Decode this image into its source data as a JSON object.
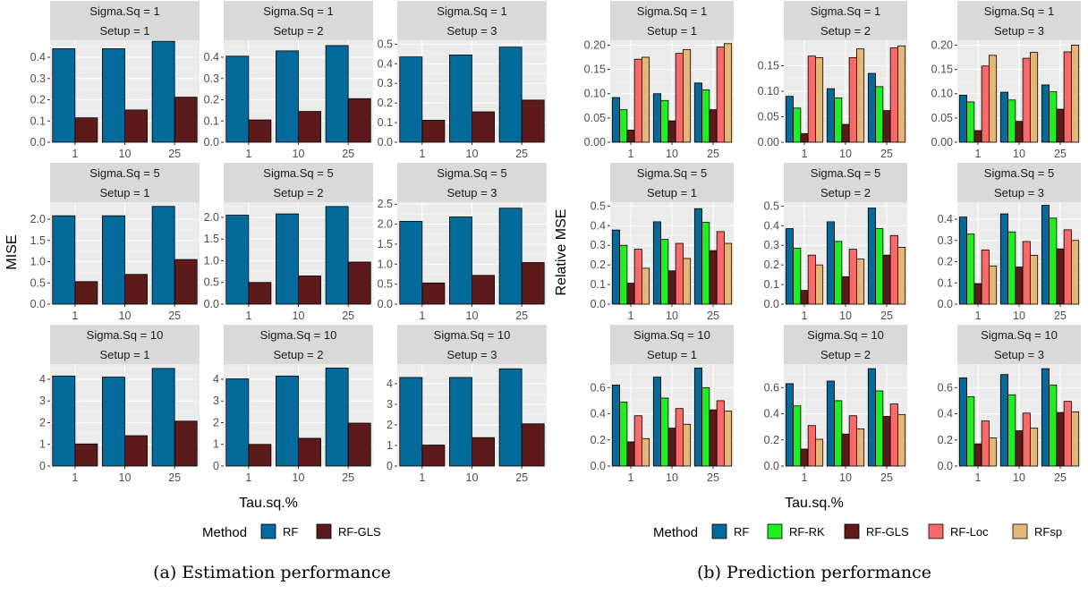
{
  "chart_data": [
    {
      "type": "bar",
      "caption": "(a) Estimation performance",
      "xlabel": "Tau.sq.%",
      "ylabel": "MISE",
      "categories": [
        "1",
        "10",
        "25"
      ],
      "legend": {
        "title": "Method",
        "position": "bottom"
      },
      "series": [
        {
          "name": "RF",
          "color": "#036a9c"
        },
        {
          "name": "RF-GLS",
          "color": "#5c1a1a"
        }
      ],
      "facets": [
        {
          "strip1": "Sigma.Sq = 1",
          "strip2": "Setup = 1",
          "ylim": [
            0,
            0.48
          ],
          "ticks": [
            0.0,
            0.1,
            0.2,
            0.3,
            0.4
          ],
          "tick_labels": [
            "0.0",
            "0.1",
            "0.2",
            "0.3",
            "0.4"
          ],
          "values": {
            "RF": [
              0.44,
              0.44,
              0.475
            ],
            "RF-GLS": [
              0.115,
              0.152,
              0.212
            ]
          }
        },
        {
          "strip1": "Sigma.Sq = 1",
          "strip2": "Setup = 2",
          "ylim": [
            0,
            0.48
          ],
          "ticks": [
            0.0,
            0.1,
            0.2,
            0.3,
            0.4
          ],
          "tick_labels": [
            "0.0",
            "0.1",
            "0.2",
            "0.3",
            "0.4"
          ],
          "values": {
            "RF": [
              0.405,
              0.43,
              0.455
            ],
            "RF-GLS": [
              0.105,
              0.145,
              0.205
            ]
          }
        },
        {
          "strip1": "Sigma.Sq = 1",
          "strip2": "Setup = 3",
          "ylim": [
            0,
            0.52
          ],
          "ticks": [
            0.0,
            0.1,
            0.2,
            0.3,
            0.4,
            0.5
          ],
          "tick_labels": [
            "0.0",
            "0.1",
            "0.2",
            "0.3",
            "0.4",
            "0.5"
          ],
          "values": {
            "RF": [
              0.435,
              0.445,
              0.485
            ],
            "RF-GLS": [
              0.112,
              0.155,
              0.215
            ]
          }
        },
        {
          "strip1": "Sigma.Sq = 5",
          "strip2": "Setup = 1",
          "ylim": [
            0,
            2.4
          ],
          "ticks": [
            0.0,
            0.5,
            1.0,
            1.5,
            2.0
          ],
          "tick_labels": [
            "0.0",
            "0.5",
            "1.0",
            "1.5",
            "2.0"
          ],
          "values": {
            "RF": [
              2.08,
              2.08,
              2.3
            ],
            "RF-GLS": [
              0.53,
              0.7,
              1.05
            ]
          }
        },
        {
          "strip1": "Sigma.Sq = 5",
          "strip2": "Setup = 2",
          "ylim": [
            0,
            2.35
          ],
          "ticks": [
            0.0,
            0.5,
            1.0,
            1.5,
            2.0
          ],
          "tick_labels": [
            "0.0",
            "0.5",
            "1.0",
            "1.5",
            "2.0"
          ],
          "values": {
            "RF": [
              2.05,
              2.08,
              2.25
            ],
            "RF-GLS": [
              0.5,
              0.65,
              0.97
            ]
          }
        },
        {
          "strip1": "Sigma.Sq = 5",
          "strip2": "Setup = 3",
          "ylim": [
            0,
            2.55
          ],
          "ticks": [
            0.0,
            0.5,
            1.0,
            1.5,
            2.0,
            2.5
          ],
          "tick_labels": [
            "0.0",
            "0.5",
            "1.0",
            "1.5",
            "2.0",
            "2.5"
          ],
          "values": {
            "RF": [
              2.07,
              2.18,
              2.4
            ],
            "RF-GLS": [
              0.53,
              0.72,
              1.04
            ]
          }
        },
        {
          "strip1": "Sigma.Sq = 10",
          "strip2": "Setup = 1",
          "ylim": [
            0,
            4.7
          ],
          "ticks": [
            0,
            1,
            2,
            3,
            4
          ],
          "tick_labels": [
            "0",
            "1",
            "2",
            "3",
            "4"
          ],
          "values": {
            "RF": [
              4.15,
              4.1,
              4.5
            ],
            "RF-GLS": [
              1.02,
              1.4,
              2.07
            ]
          }
        },
        {
          "strip1": "Sigma.Sq = 10",
          "strip2": "Setup = 2",
          "ylim": [
            0,
            4.7
          ],
          "ticks": [
            0,
            1,
            2,
            3,
            4
          ],
          "tick_labels": [
            "0",
            "1",
            "2",
            "3",
            "4"
          ],
          "values": {
            "RF": [
              4.02,
              4.15,
              4.52
            ],
            "RF-GLS": [
              1.0,
              1.28,
              1.98
            ]
          }
        },
        {
          "strip1": "Sigma.Sq = 10",
          "strip2": "Setup = 3",
          "ylim": [
            0,
            4.95
          ],
          "ticks": [
            0,
            1,
            2,
            3,
            4
          ],
          "tick_labels": [
            "0",
            "1",
            "2",
            "3",
            "4"
          ],
          "values": {
            "RF": [
              4.3,
              4.3,
              4.72
            ],
            "RF-GLS": [
              1.02,
              1.38,
              2.05
            ]
          }
        }
      ]
    },
    {
      "type": "bar",
      "caption": "(b) Prediction performance",
      "xlabel": "Tau.sq.%",
      "ylabel": "Relative MSE",
      "categories": [
        "1",
        "10",
        "25"
      ],
      "legend": {
        "title": "Method",
        "position": "bottom"
      },
      "series": [
        {
          "name": "RF",
          "color": "#036a9c"
        },
        {
          "name": "RF-RK",
          "color": "#1ef01e"
        },
        {
          "name": "RF-GLS",
          "color": "#5c1a1a"
        },
        {
          "name": "RF-Loc",
          "color": "#f56a6a"
        },
        {
          "name": "RFsp",
          "color": "#e3b77a"
        }
      ],
      "facets": [
        {
          "strip1": "Sigma.Sq = 1",
          "strip2": "Setup = 1",
          "ylim": [
            0,
            0.21
          ],
          "ticks": [
            0.0,
            0.05,
            0.1,
            0.15,
            0.2
          ],
          "tick_labels": [
            "0.00",
            "0.05",
            "0.10",
            "0.15",
            "0.20"
          ],
          "values": {
            "RF": [
              0.092,
              0.1,
              0.122
            ],
            "RF-RK": [
              0.067,
              0.086,
              0.108
            ],
            "RF-GLS": [
              0.025,
              0.044,
              0.067
            ],
            "RF-Loc": [
              0.171,
              0.183,
              0.196
            ],
            "RFsp": [
              0.175,
              0.191,
              0.203
            ]
          }
        },
        {
          "strip1": "Sigma.Sq = 1",
          "strip2": "Setup = 2",
          "ylim": [
            0,
            0.2
          ],
          "ticks": [
            0.0,
            0.05,
            0.1,
            0.15
          ],
          "tick_labels": [
            "0.00",
            "0.05",
            "0.10",
            "0.15"
          ],
          "values": {
            "RF": [
              0.09,
              0.105,
              0.135
            ],
            "RF-RK": [
              0.067,
              0.087,
              0.109
            ],
            "RF-GLS": [
              0.017,
              0.035,
              0.062
            ],
            "RF-Loc": [
              0.169,
              0.166,
              0.185
            ],
            "RFsp": [
              0.166,
              0.183,
              0.189
            ]
          }
        },
        {
          "strip1": "Sigma.Sq = 1",
          "strip2": "Setup = 3",
          "ylim": [
            0,
            0.21
          ],
          "ticks": [
            0.0,
            0.05,
            0.1,
            0.15,
            0.2
          ],
          "tick_labels": [
            "0.00",
            "0.05",
            "0.10",
            "0.15",
            "0.20"
          ],
          "values": {
            "RF": [
              0.097,
              0.103,
              0.118
            ],
            "RF-RK": [
              0.083,
              0.087,
              0.104
            ],
            "RF-GLS": [
              0.024,
              0.043,
              0.068
            ],
            "RF-Loc": [
              0.157,
              0.173,
              0.186
            ],
            "RFsp": [
              0.179,
              0.185,
              0.2
            ]
          }
        },
        {
          "strip1": "Sigma.Sq = 5",
          "strip2": "Setup = 1",
          "ylim": [
            0,
            0.52
          ],
          "ticks": [
            0.0,
            0.1,
            0.2,
            0.3,
            0.4,
            0.5
          ],
          "tick_labels": [
            "0.0",
            "0.1",
            "0.2",
            "0.3",
            "0.4",
            "0.5"
          ],
          "values": {
            "RF": [
              0.378,
              0.42,
              0.487
            ],
            "RF-RK": [
              0.3,
              0.33,
              0.417
            ],
            "RF-GLS": [
              0.107,
              0.17,
              0.273
            ],
            "RF-Loc": [
              0.28,
              0.31,
              0.37
            ],
            "RFsp": [
              0.183,
              0.233,
              0.31
            ]
          }
        },
        {
          "strip1": "Sigma.Sq = 5",
          "strip2": "Setup = 2",
          "ylim": [
            0,
            0.52
          ],
          "ticks": [
            0.0,
            0.1,
            0.2,
            0.3,
            0.4,
            0.5
          ],
          "tick_labels": [
            "0.0",
            "0.1",
            "0.2",
            "0.3",
            "0.4",
            "0.5"
          ],
          "values": {
            "RF": [
              0.385,
              0.42,
              0.49
            ],
            "RF-RK": [
              0.285,
              0.32,
              0.385
            ],
            "RF-GLS": [
              0.07,
              0.14,
              0.25
            ],
            "RF-Loc": [
              0.25,
              0.28,
              0.35
            ],
            "RFsp": [
              0.2,
              0.23,
              0.29
            ]
          }
        },
        {
          "strip1": "Sigma.Sq = 5",
          "strip2": "Setup = 3",
          "ylim": [
            0,
            0.48
          ],
          "ticks": [
            0.0,
            0.1,
            0.2,
            0.3,
            0.4
          ],
          "tick_labels": [
            "0.0",
            "0.1",
            "0.2",
            "0.3",
            "0.4"
          ],
          "values": {
            "RF": [
              0.41,
              0.425,
              0.465
            ],
            "RF-RK": [
              0.33,
              0.34,
              0.405
            ],
            "RF-GLS": [
              0.097,
              0.175,
              0.26
            ],
            "RF-Loc": [
              0.255,
              0.295,
              0.35
            ],
            "RFsp": [
              0.18,
              0.23,
              0.3
            ]
          }
        },
        {
          "strip1": "Sigma.Sq = 10",
          "strip2": "Setup = 1",
          "ylim": [
            0,
            0.78
          ],
          "ticks": [
            0.0,
            0.2,
            0.4,
            0.6
          ],
          "tick_labels": [
            "0.0",
            "0.2",
            "0.4",
            "0.6"
          ],
          "values": {
            "RF": [
              0.62,
              0.68,
              0.75
            ],
            "RF-RK": [
              0.49,
              0.52,
              0.6
            ],
            "RF-GLS": [
              0.185,
              0.29,
              0.43
            ],
            "RF-Loc": [
              0.385,
              0.44,
              0.5
            ],
            "RFsp": [
              0.21,
              0.32,
              0.42
            ]
          }
        },
        {
          "strip1": "Sigma.Sq = 10",
          "strip2": "Setup = 2",
          "ylim": [
            0,
            0.78
          ],
          "ticks": [
            0.0,
            0.2,
            0.4,
            0.6
          ],
          "tick_labels": [
            "0.0",
            "0.2",
            "0.4",
            "0.6"
          ],
          "values": {
            "RF": [
              0.63,
              0.65,
              0.745
            ],
            "RF-RK": [
              0.46,
              0.5,
              0.575
            ],
            "RF-GLS": [
              0.13,
              0.245,
              0.38
            ],
            "RF-Loc": [
              0.31,
              0.385,
              0.475
            ],
            "RFsp": [
              0.205,
              0.285,
              0.395
            ]
          }
        },
        {
          "strip1": "Sigma.Sq = 10",
          "strip2": "Setup = 3",
          "ylim": [
            0,
            0.78
          ],
          "ticks": [
            0.0,
            0.2,
            0.4,
            0.6
          ],
          "tick_labels": [
            "0.0",
            "0.2",
            "0.4",
            "0.6"
          ],
          "values": {
            "RF": [
              0.675,
              0.7,
              0.745
            ],
            "RF-RK": [
              0.53,
              0.545,
              0.62
            ],
            "RF-GLS": [
              0.17,
              0.27,
              0.41
            ],
            "RF-Loc": [
              0.345,
              0.405,
              0.495
            ],
            "RFsp": [
              0.215,
              0.29,
              0.415
            ]
          }
        }
      ]
    }
  ]
}
